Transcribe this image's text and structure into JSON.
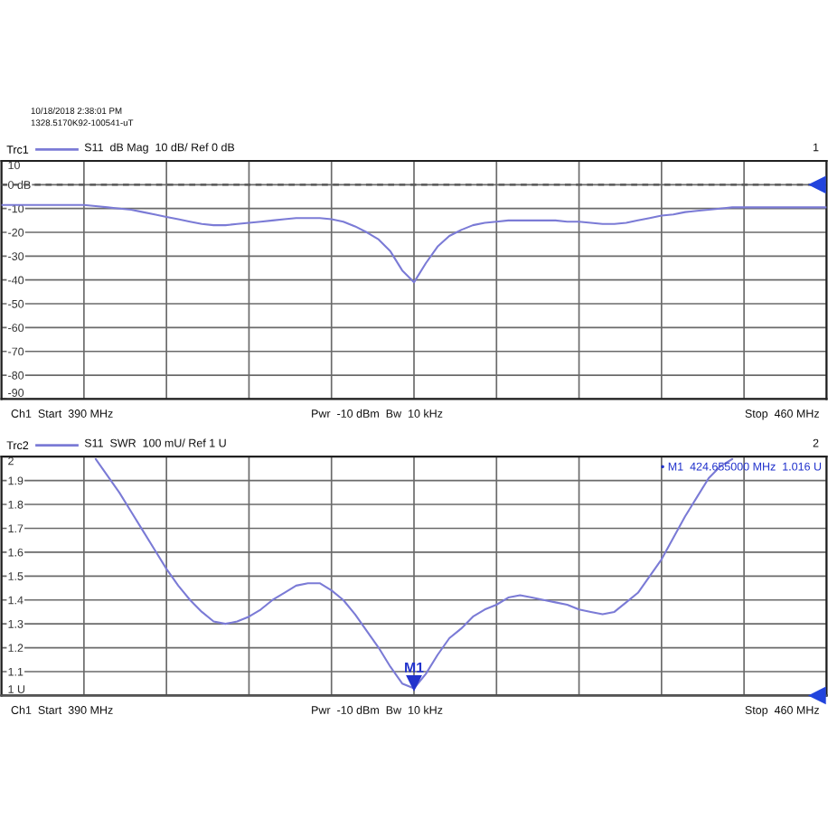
{
  "chart_data": [
    {
      "type": "line",
      "title": "1",
      "subtitle": "S11  dB Mag  10 dB/ Ref 0 dB",
      "annotations": [
        "10/18/2018 2:38:01 PM",
        "1328.5170K92-100541-uT",
        "Ch1  Start  390 MHz",
        "Pwr  -10 dBm  Bw  10 kHz",
        "Stop  460 MHz"
      ],
      "categories": [
        null,
        null,
        null,
        null,
        null,
        null,
        null,
        null,
        null,
        null,
        null,
        null,
        null,
        null,
        null,
        null,
        null,
        null,
        null,
        null,
        null,
        null,
        null,
        null,
        null,
        null,
        null,
        null,
        null,
        null,
        null,
        null,
        null,
        null,
        null,
        null,
        null,
        null,
        null,
        null,
        null,
        null,
        null,
        null,
        null,
        null,
        null,
        null,
        null,
        null,
        null,
        null,
        null,
        null,
        null,
        null,
        null,
        null,
        null,
        null,
        null,
        null,
        null,
        null,
        null,
        null,
        null,
        null,
        null,
        null,
        null
      ],
      "series": [
        {
          "name": "Trc1",
          "color": "#7b7bd6",
          "values": [
            -8.5,
            -8.5,
            -8.5,
            -8.5,
            -8.5,
            -8.5,
            -8.5,
            -8.5,
            -9,
            -9.5,
            -10,
            -10.5,
            -11.5,
            -12.5,
            -13.5,
            -14.5,
            -15.5,
            -16.5,
            -17,
            -17,
            -16.5,
            -16,
            -15.5,
            -15,
            -14.5,
            -14,
            -14,
            -14,
            -14.5,
            -15.5,
            -17.5,
            -20,
            -23,
            -28,
            -36,
            -41,
            -33,
            -26,
            -21.5,
            -19,
            -17,
            -16,
            -15.5,
            -15,
            -15,
            -15,
            -15,
            -15,
            -15.5,
            -15.5,
            -16,
            -16.5,
            -16.5,
            -16,
            -15,
            -14,
            -13,
            -12.5,
            -11.5,
            -11,
            -10.5,
            -10,
            -9.5,
            -9.5,
            -9.5,
            -9.5,
            -9.5,
            -9.5,
            -9.5,
            -9.5,
            -9.5
          ]
        }
      ],
      "ylim": [
        -90,
        10
      ],
      "yticks": [
        10,
        {
          "value": 0,
          "label": "0 dB"
        },
        -10,
        -20,
        -30,
        -40,
        -50,
        -60,
        -70,
        -80,
        -90
      ],
      "ref_lines": [
        {
          "axis": "y",
          "value": 0,
          "color": "#555555",
          "line_style": "dashed"
        }
      ],
      "tick_labels": "y",
      "grid": true,
      "legend": "top left"
    },
    {
      "type": "line",
      "title": "2",
      "subtitle": "S11  SWR  100 mU/ Ref 1 U",
      "annotations": [
        {
          "text": "M1",
          "y": 1.016
        },
        "• M1  424.655000 MHz  1.016 U",
        "Ch1  Start  390 MHz",
        "Pwr  -10 dBm  Bw  10 kHz",
        "Stop  460 MHz"
      ],
      "categories": [
        null,
        null,
        null,
        null,
        null,
        null,
        null,
        null,
        null,
        null,
        null,
        null,
        null,
        null,
        null,
        null,
        null,
        null,
        null,
        null,
        null,
        null,
        null,
        null,
        null,
        null,
        null,
        null,
        null,
        null,
        null,
        null,
        null,
        null,
        null,
        null,
        null,
        null,
        null,
        null,
        null,
        null,
        null,
        null,
        null,
        null,
        null,
        null,
        null,
        null,
        null,
        null,
        null,
        null,
        null,
        null,
        null,
        null,
        null,
        null,
        null,
        null,
        null,
        null,
        null,
        null,
        null,
        null,
        null,
        null,
        null
      ],
      "series": [
        {
          "name": "Trc2",
          "color": "#7b7bd6",
          "values": [
            null,
            null,
            null,
            null,
            null,
            null,
            null,
            null,
            1.99,
            1.92,
            1.85,
            1.77,
            1.69,
            1.61,
            1.53,
            1.46,
            1.4,
            1.35,
            1.31,
            1.3,
            1.31,
            1.33,
            1.36,
            1.4,
            1.43,
            1.46,
            1.47,
            1.47,
            1.44,
            1.4,
            1.34,
            1.27,
            1.2,
            1.12,
            1.05,
            1.03,
            1.09,
            1.17,
            1.24,
            1.28,
            1.33,
            1.36,
            1.38,
            1.41,
            1.42,
            1.41,
            1.4,
            1.39,
            1.38,
            1.36,
            1.35,
            1.34,
            1.35,
            1.39,
            1.43,
            1.5,
            1.57,
            1.66,
            1.75,
            1.83,
            1.91,
            1.96,
            1.99,
            null,
            null,
            null,
            null,
            null,
            null,
            null,
            null
          ]
        }
      ],
      "ylim": [
        1,
        2
      ],
      "yticks": [
        2,
        1.9,
        1.8,
        1.7,
        1.6,
        1.5,
        1.4,
        1.3,
        1.2,
        1.1,
        {
          "value": 1,
          "label": "1 U"
        }
      ],
      "ref_lines": [
        {
          "axis": "y",
          "value": 1,
          "color": "#555555"
        }
      ],
      "tick_labels": "y",
      "grid": true,
      "legend": "top left"
    }
  ]
}
